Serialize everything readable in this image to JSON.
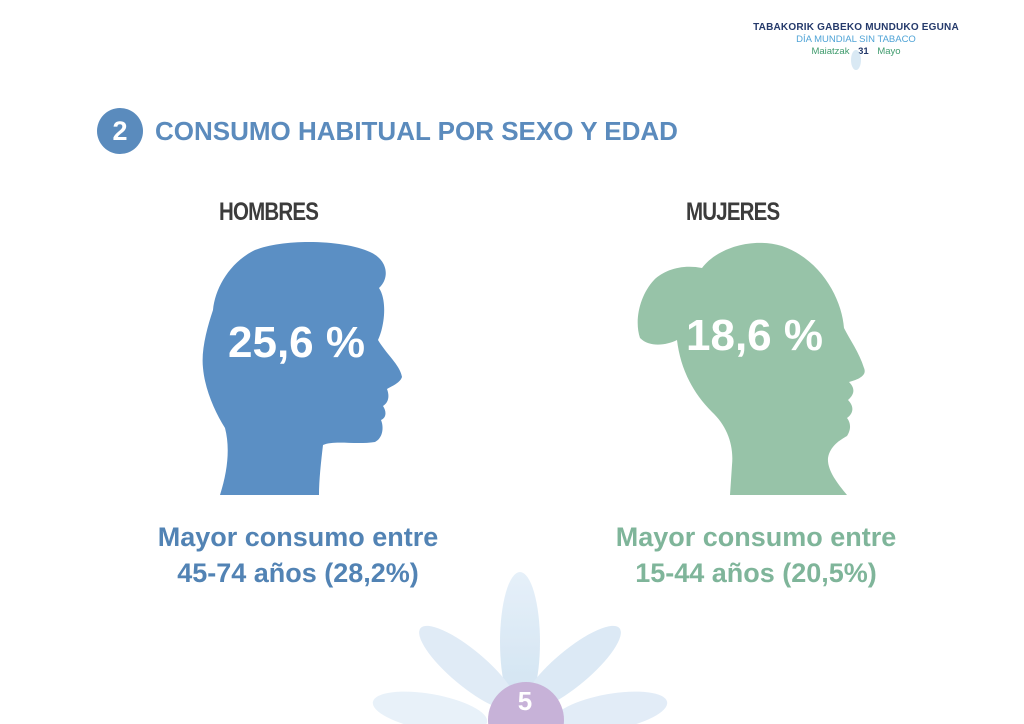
{
  "header": {
    "line1": "TABAKORIK GABEKO MUNDUKO EGUNA",
    "line2": "DÍA MUNDIAL SIN TABACO",
    "month_eu": "Maiatzak",
    "day": "31",
    "month_es": "Mayo"
  },
  "section": {
    "number": "2",
    "title": "CONSUMO HABITUAL POR SEXO Y EDAD"
  },
  "men": {
    "label": "HOMBRES",
    "percentage": "25,6 %",
    "caption_line1": "Mayor consumo entre",
    "caption_line2": "45-74 años (28,2%)",
    "color": "#5b8fc4"
  },
  "women": {
    "label": "MUJERES",
    "percentage": "18,6 %",
    "caption_line1": "Mayor consumo entre",
    "caption_line2": "15-44 años (20,5%)",
    "color": "#97c3a8"
  },
  "page": {
    "number": "5"
  }
}
